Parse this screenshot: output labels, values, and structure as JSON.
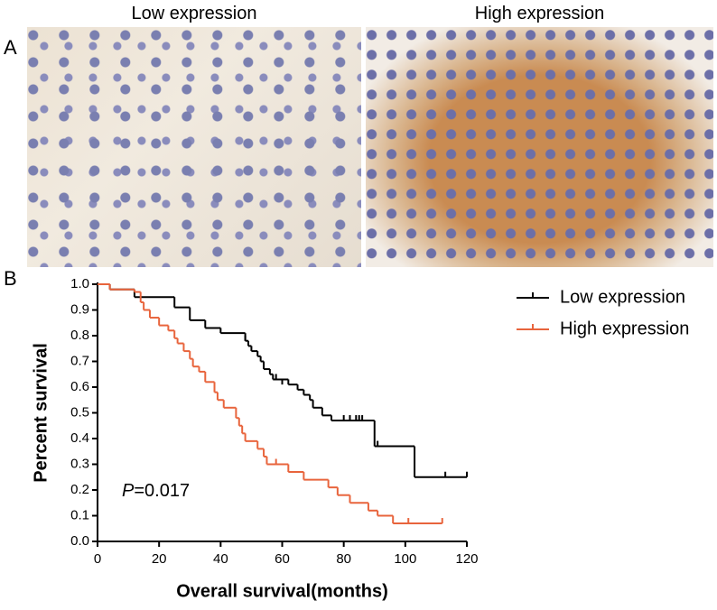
{
  "panels": {
    "a_label": "A",
    "b_label": "B",
    "left_caption": "Low expression",
    "right_caption": "High expression"
  },
  "chart_data": {
    "type": "step",
    "xlabel": "Overall survival(months)",
    "ylabel": "Percent survival",
    "annotation_var": "P",
    "annotation_text": "=0.017",
    "xlim": [
      0,
      120
    ],
    "xticks": [
      0,
      20,
      40,
      60,
      80,
      100,
      120
    ],
    "ylim": [
      0,
      1
    ],
    "yticks": [
      {
        "value": 0,
        "label": "0.0"
      },
      0.1,
      0.2,
      0.3,
      0.4,
      0.5,
      0.6,
      0.7,
      0.8,
      0.9,
      {
        "value": 1,
        "label": "1.0"
      }
    ],
    "legend": "upper right",
    "series": [
      {
        "name": "Low expression",
        "color": "#000000",
        "x": [
          0,
          4,
          12,
          25,
          30,
          35,
          40,
          48,
          49,
          50,
          52,
          53,
          54,
          56,
          57,
          62,
          65,
          67,
          69,
          70,
          73,
          76,
          90,
          103,
          120
        ],
        "values": [
          1.0,
          0.98,
          0.95,
          0.91,
          0.86,
          0.83,
          0.81,
          0.78,
          0.76,
          0.74,
          0.72,
          0.7,
          0.67,
          0.65,
          0.63,
          0.61,
          0.59,
          0.57,
          0.55,
          0.52,
          0.49,
          0.47,
          0.37,
          0.25,
          0.25
        ],
        "censor_x": [
          48,
          58,
          60,
          80,
          82,
          84,
          85,
          86,
          91,
          113,
          120
        ],
        "censor_values": [
          0.78,
          0.63,
          0.61,
          0.47,
          0.47,
          0.47,
          0.47,
          0.47,
          0.37,
          0.25,
          0.25
        ]
      },
      {
        "name": "High expression",
        "color": "#e8643c",
        "x": [
          0,
          4,
          12,
          14,
          15,
          17,
          20,
          23,
          25,
          26,
          28,
          30,
          31,
          33,
          35,
          38,
          39,
          41,
          45,
          46,
          47,
          48,
          52,
          54,
          55,
          62,
          67,
          75,
          78,
          82,
          88,
          91,
          96,
          112
        ],
        "values": [
          1.0,
          0.98,
          0.97,
          0.93,
          0.9,
          0.87,
          0.84,
          0.82,
          0.79,
          0.77,
          0.74,
          0.71,
          0.68,
          0.66,
          0.62,
          0.58,
          0.55,
          0.52,
          0.48,
          0.45,
          0.42,
          0.39,
          0.36,
          0.33,
          0.3,
          0.27,
          0.24,
          0.21,
          0.18,
          0.15,
          0.12,
          0.1,
          0.07,
          0.07
        ],
        "censor_x": [
          58,
          101,
          112
        ],
        "censor_values": [
          0.3,
          0.07,
          0.07
        ]
      }
    ]
  }
}
